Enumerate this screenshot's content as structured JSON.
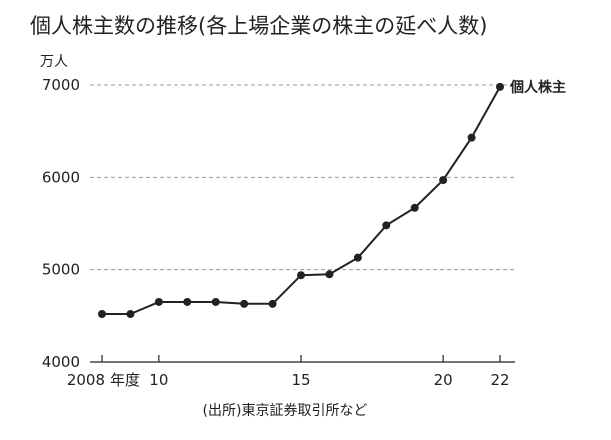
{
  "chart_data": {
    "type": "line",
    "title": "個人株主数の推移(各上場企業の株主の延べ人数)",
    "ylabel": "万人",
    "source": "(出所)東京証券取引所など",
    "ylim": [
      4000,
      7000
    ],
    "yticks": [
      {
        "value": 4000,
        "label": "4000"
      },
      {
        "value": 5000,
        "label": "5000"
      },
      {
        "value": 6000,
        "label": "6000"
      },
      {
        "value": 7000,
        "label": "7000"
      }
    ],
    "xlim": [
      2008,
      2022
    ],
    "xticks": [
      {
        "value": 2008,
        "label": "2008"
      },
      {
        "value": 2010,
        "label": "10"
      },
      {
        "value": 2015,
        "label": "15"
      },
      {
        "value": 2020,
        "label": "20"
      },
      {
        "value": 2022,
        "label": "22"
      }
    ],
    "x_suffix": "年度",
    "grid": true,
    "series": [
      {
        "name": "個人株主",
        "x": [
          2008,
          2009,
          2010,
          2011,
          2012,
          2013,
          2014,
          2015,
          2016,
          2017,
          2018,
          2019,
          2020,
          2021,
          2022
        ],
        "values": [
          4520,
          4520,
          4650,
          4650,
          4650,
          4630,
          4630,
          4940,
          4950,
          5130,
          5480,
          5670,
          5970,
          6430,
          6980
        ]
      }
    ]
  }
}
